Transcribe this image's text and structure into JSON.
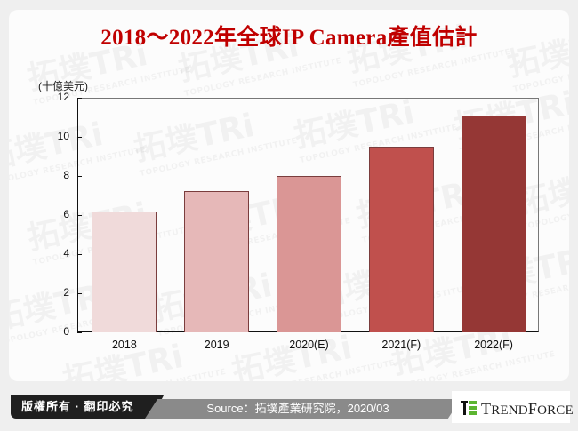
{
  "title": "2018～2022年全球IP Camera產值估計",
  "unit_label": "(十億美元)",
  "watermark": {
    "cn": "拓墣TRi",
    "en": "TOPOLOGY RESEARCH INSTITUTE"
  },
  "chart_data": {
    "type": "bar",
    "title": "2018～2022年全球IP Camera產值估計",
    "xlabel": "",
    "ylabel": "(十億美元)",
    "categories": [
      "2018",
      "2019",
      "2020(E)",
      "2021(F)",
      "2022(F)"
    ],
    "values": [
      6.2,
      7.25,
      8.0,
      9.5,
      11.1
    ],
    "colors": [
      "#f0dada",
      "#e6b8b8",
      "#da9695",
      "#c0504d",
      "#953735"
    ],
    "ylim": [
      0,
      12
    ],
    "yticks": [
      "0",
      "2",
      "4",
      "6",
      "8",
      "10",
      "12"
    ],
    "grid": false,
    "legend": null
  },
  "footer": {
    "copyright": "版權所有 · 翻印必究",
    "source": "Source：拓墣產業研究院，2020/03",
    "logo": {
      "text_lead": "T",
      "text_rest1": "REND",
      "text_lead2": "F",
      "text_rest2": "ORCE",
      "name": "TrendForce"
    }
  }
}
